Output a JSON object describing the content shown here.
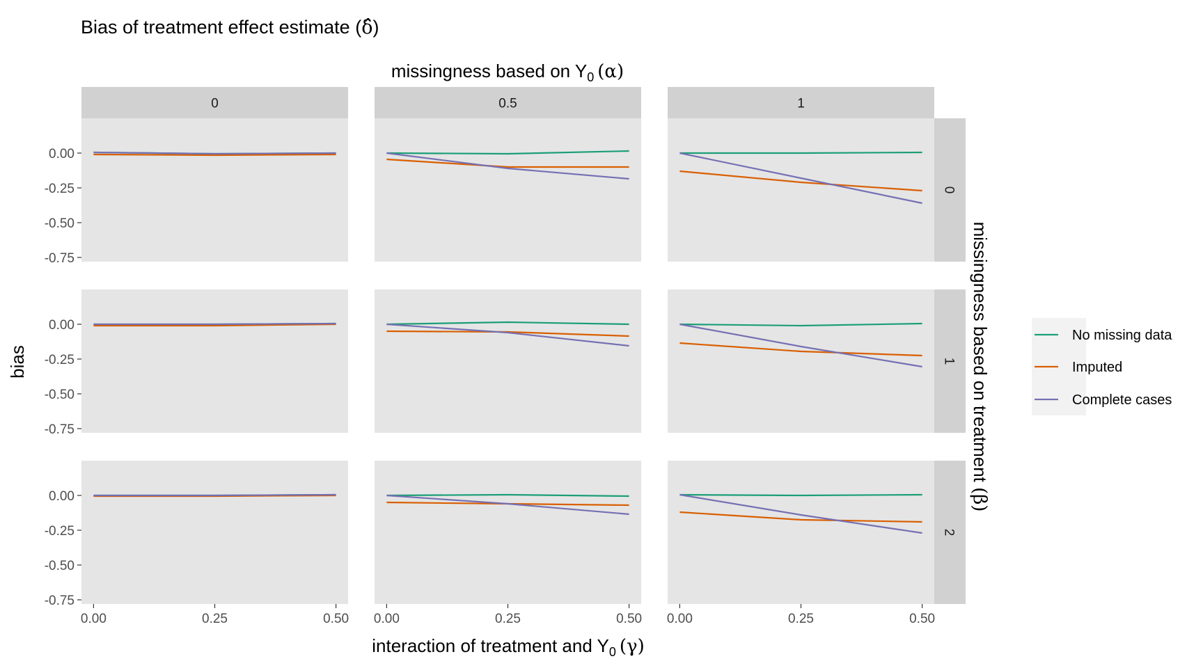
{
  "colors": {
    "no_missing": "#1b9e77",
    "imputed": "#d95f02",
    "complete_cases": "#7570b3",
    "panel_bg": "#e5e5e5",
    "strip_bg": "#d1d1d1"
  },
  "chart_data": {
    "type": "line",
    "title": "Bias of treatment effect estimate (",
    "title_symbol": "δ̂",
    "title_close": ")",
    "facet_col_title": "missingness based on Y",
    "facet_col_sub": "0",
    "facet_col_symbol": "(α)",
    "facet_row_title": "missingness based on treatment ",
    "facet_row_symbol": "(β)",
    "xlabel": "interaction of treatment and Y",
    "xlabel_sub": "0",
    "xlabel_symbol": "(γ)",
    "ylabel": "bias",
    "x": [
      0,
      0.25,
      0.5
    ],
    "x_tick_labels": [
      "0.00",
      "0.25",
      "0.50"
    ],
    "y_ticks": [
      0,
      -0.25,
      -0.5,
      -0.75
    ],
    "y_tick_labels": [
      "0.00",
      "-0.25",
      "-0.50",
      "-0.75"
    ],
    "xlim": [
      -0.025,
      0.525
    ],
    "ylim": [
      -0.78,
      0.25
    ],
    "grid": false,
    "legend_position": "right",
    "col_labels": [
      "0",
      "0.5",
      "1"
    ],
    "row_labels": [
      "0",
      "1",
      "2"
    ],
    "series_names": [
      "No missing data",
      "Imputed",
      "Complete cases"
    ],
    "panels": [
      {
        "row": 0,
        "col": 0,
        "series": [
          {
            "name": "No missing data",
            "values": [
              0.005,
              -0.005,
              0.0
            ]
          },
          {
            "name": "Imputed",
            "values": [
              -0.01,
              -0.015,
              -0.01
            ]
          },
          {
            "name": "Complete cases",
            "values": [
              0.005,
              -0.005,
              0.0
            ]
          }
        ]
      },
      {
        "row": 0,
        "col": 1,
        "series": [
          {
            "name": "No missing data",
            "values": [
              0.0,
              -0.005,
              0.015
            ]
          },
          {
            "name": "Imputed",
            "values": [
              -0.045,
              -0.1,
              -0.1
            ]
          },
          {
            "name": "Complete cases",
            "values": [
              0.0,
              -0.11,
              -0.185
            ]
          }
        ]
      },
      {
        "row": 0,
        "col": 2,
        "series": [
          {
            "name": "No missing data",
            "values": [
              0.0,
              0.0,
              0.005
            ]
          },
          {
            "name": "Imputed",
            "values": [
              -0.13,
              -0.21,
              -0.27
            ]
          },
          {
            "name": "Complete cases",
            "values": [
              0.0,
              -0.18,
              -0.36
            ]
          }
        ]
      },
      {
        "row": 1,
        "col": 0,
        "series": [
          {
            "name": "No missing data",
            "values": [
              0.0,
              0.0,
              0.005
            ]
          },
          {
            "name": "Imputed",
            "values": [
              -0.01,
              -0.01,
              0.0
            ]
          },
          {
            "name": "Complete cases",
            "values": [
              0.0,
              0.0,
              0.005
            ]
          }
        ]
      },
      {
        "row": 1,
        "col": 1,
        "series": [
          {
            "name": "No missing data",
            "values": [
              0.0,
              0.015,
              0.0
            ]
          },
          {
            "name": "Imputed",
            "values": [
              -0.05,
              -0.055,
              -0.085
            ]
          },
          {
            "name": "Complete cases",
            "values": [
              0.0,
              -0.06,
              -0.155
            ]
          }
        ]
      },
      {
        "row": 1,
        "col": 2,
        "series": [
          {
            "name": "No missing data",
            "values": [
              0.0,
              -0.01,
              0.005
            ]
          },
          {
            "name": "Imputed",
            "values": [
              -0.135,
              -0.195,
              -0.225
            ]
          },
          {
            "name": "Complete cases",
            "values": [
              0.0,
              -0.16,
              -0.305
            ]
          }
        ]
      },
      {
        "row": 2,
        "col": 0,
        "series": [
          {
            "name": "No missing data",
            "values": [
              0.0,
              0.0,
              0.005
            ]
          },
          {
            "name": "Imputed",
            "values": [
              -0.005,
              -0.005,
              0.0
            ]
          },
          {
            "name": "Complete cases",
            "values": [
              0.0,
              0.0,
              0.005
            ]
          }
        ]
      },
      {
        "row": 2,
        "col": 1,
        "series": [
          {
            "name": "No missing data",
            "values": [
              0.0,
              0.005,
              -0.005
            ]
          },
          {
            "name": "Imputed",
            "values": [
              -0.05,
              -0.06,
              -0.07
            ]
          },
          {
            "name": "Complete cases",
            "values": [
              0.0,
              -0.06,
              -0.135
            ]
          }
        ]
      },
      {
        "row": 2,
        "col": 2,
        "series": [
          {
            "name": "No missing data",
            "values": [
              0.005,
              0.0,
              0.005
            ]
          },
          {
            "name": "Imputed",
            "values": [
              -0.12,
              -0.175,
              -0.19
            ]
          },
          {
            "name": "Complete cases",
            "values": [
              0.005,
              -0.14,
              -0.27
            ]
          }
        ]
      }
    ]
  }
}
